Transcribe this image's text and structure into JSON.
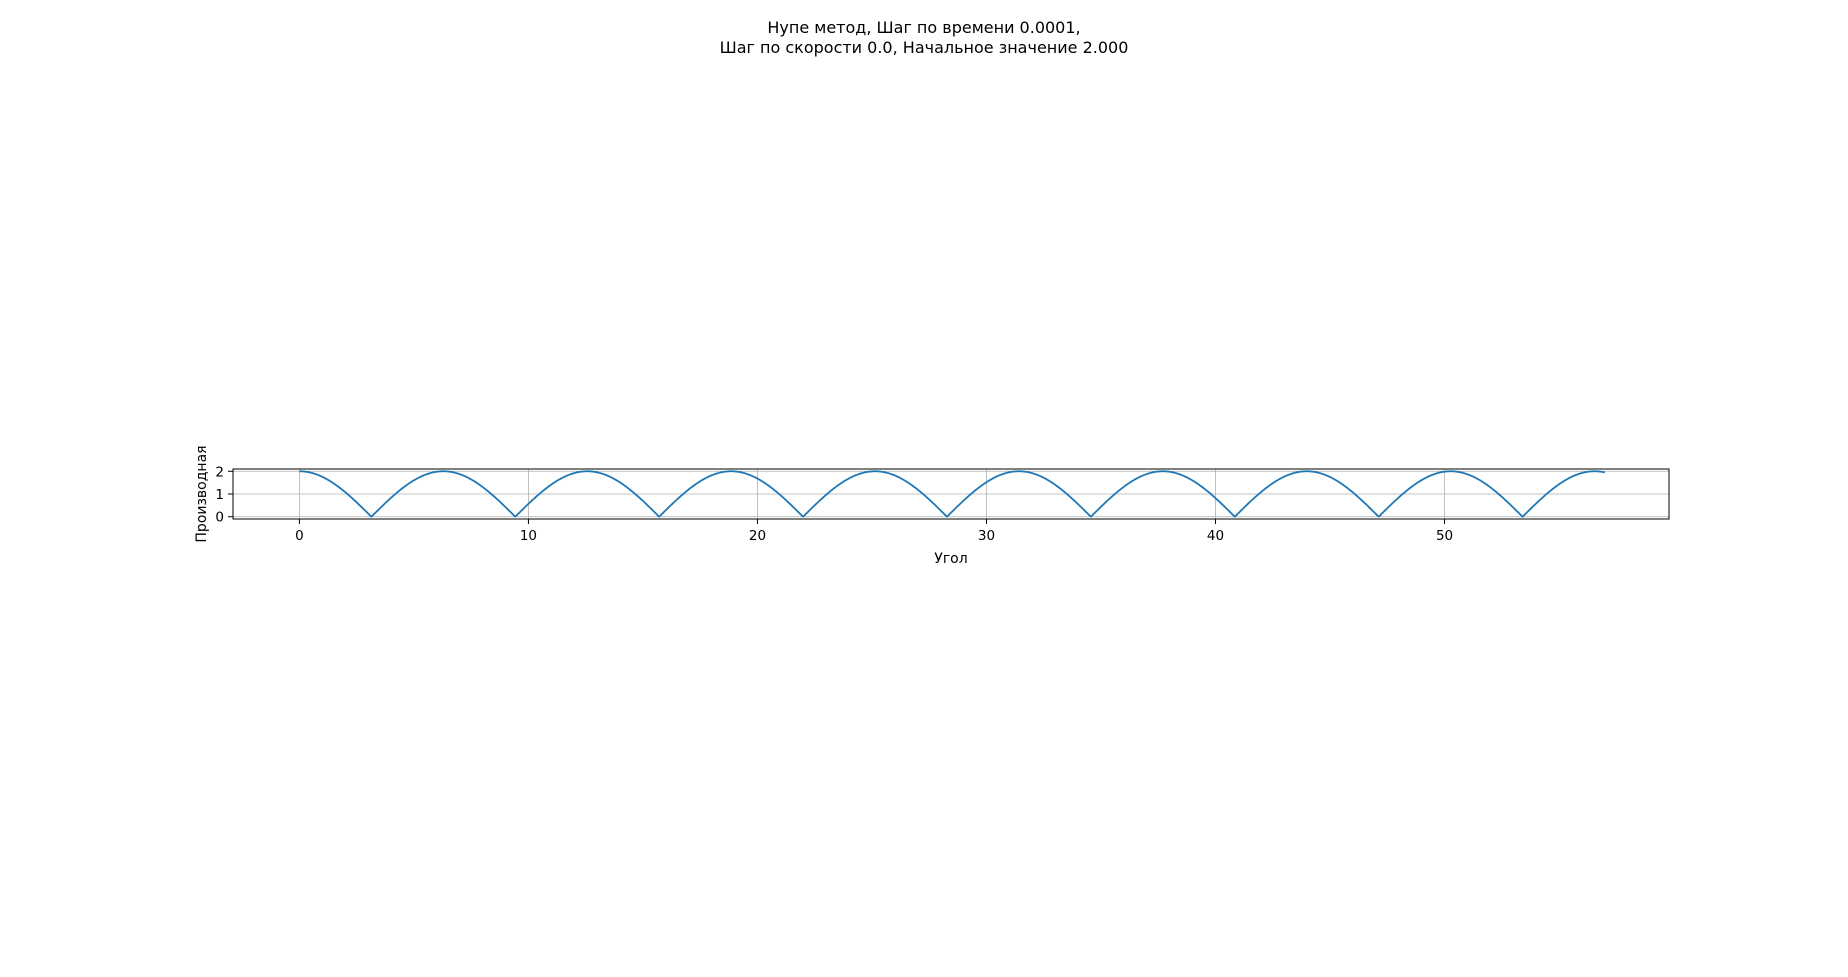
{
  "chart_data": {
    "type": "line",
    "title_line1": "Нупе метод, Шаг по времени 0.0001,",
    "title_line2": "Шаг по скорости 0.0, Начальное значение 2.000",
    "xlabel": "Угол",
    "ylabel": "Производная",
    "xlim": [
      -2.9,
      59.8
    ],
    "ylim": [
      -0.1,
      2.1
    ],
    "xticks": [
      0,
      10,
      20,
      30,
      40,
      50
    ],
    "yticks": [
      0,
      1,
      2
    ],
    "grid": true,
    "series": [
      {
        "color": "#1f77b4",
        "formula": "y = 2*|cos(x/2)|",
        "x_range": [
          0,
          57.0
        ]
      }
    ]
  }
}
